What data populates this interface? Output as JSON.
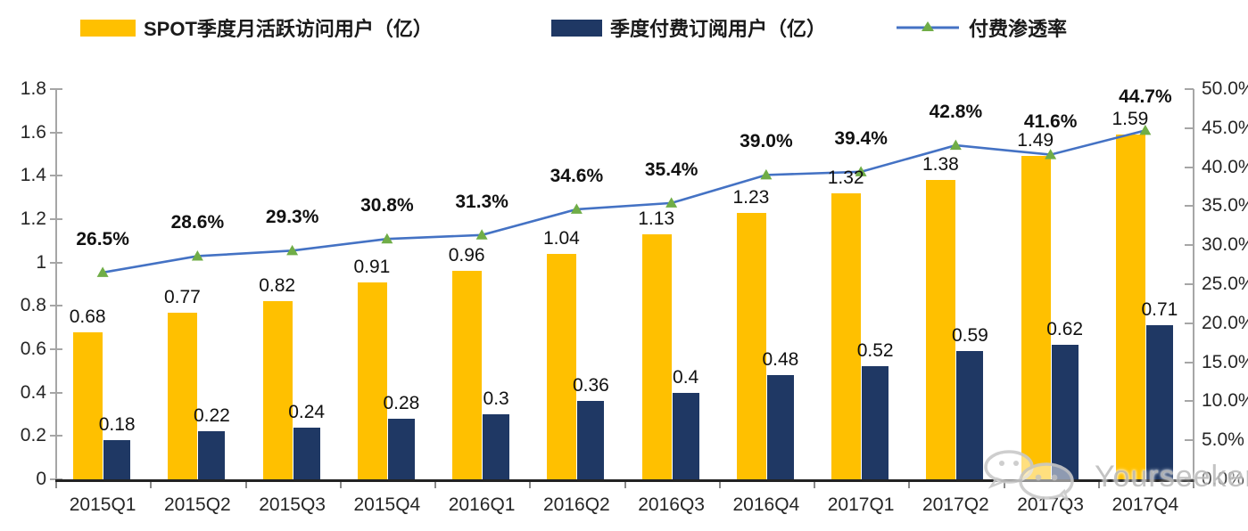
{
  "legend": {
    "mau": "SPOT季度月活跃访问用户（亿）",
    "subscribers": "季度付费订阅用户（亿）",
    "penetration": "付费渗透率"
  },
  "watermark": {
    "text": "Yourseeker",
    "icon": "wechat-icon"
  },
  "colors": {
    "mau_bar": "#FFC000",
    "subscriber_bar": "#1F3864",
    "penetration_line": "#4472C4",
    "penetration_marker": "#70AD47",
    "axis": "#A6A6A6",
    "baseline": "#222222",
    "watermark": "#BDBDBD"
  },
  "chart_data": {
    "type": "bar",
    "title": "",
    "categories": [
      "2015Q1",
      "2015Q2",
      "2015Q3",
      "2015Q4",
      "2016Q1",
      "2016Q2",
      "2016Q3",
      "2016Q4",
      "2017Q1",
      "2017Q2",
      "2017Q3",
      "2017Q4"
    ],
    "series": [
      {
        "name": "SPOT季度月活跃访问用户（亿）",
        "kind": "bar",
        "axis": "left",
        "color": "#FFC000",
        "values": [
          0.68,
          0.77,
          0.82,
          0.91,
          0.96,
          1.04,
          1.13,
          1.23,
          1.32,
          1.38,
          1.49,
          1.59
        ],
        "labels": [
          "0.68",
          "0.77",
          "0.82",
          "0.91",
          "0.96",
          "1.04",
          "1.13",
          "1.23",
          "1.32",
          "1.38",
          "1.49",
          "1.59"
        ]
      },
      {
        "name": "季度付费订阅用户（亿）",
        "kind": "bar",
        "axis": "left",
        "color": "#1F3864",
        "values": [
          0.18,
          0.22,
          0.24,
          0.28,
          0.3,
          0.36,
          0.4,
          0.48,
          0.52,
          0.59,
          0.62,
          0.71
        ],
        "labels": [
          "0.18",
          "0.22",
          "0.24",
          "0.28",
          "0.3",
          "0.36",
          "0.4",
          "0.48",
          "0.52",
          "0.59",
          "0.62",
          "0.71"
        ]
      },
      {
        "name": "付费渗透率",
        "kind": "line",
        "axis": "right",
        "color": "#4472C4",
        "marker": "triangle",
        "marker_color": "#70AD47",
        "values": [
          26.5,
          28.6,
          29.3,
          30.8,
          31.3,
          34.6,
          35.4,
          39.0,
          39.4,
          42.8,
          41.6,
          44.7
        ],
        "labels": [
          "26.5%",
          "28.6%",
          "29.3%",
          "30.8%",
          "31.3%",
          "34.6%",
          "35.4%",
          "39.0%",
          "39.4%",
          "42.8%",
          "41.6%",
          "44.7%"
        ]
      }
    ],
    "left_axis": {
      "min": 0,
      "max": 1.8,
      "tick_labels": [
        "0",
        "0.2",
        "0.4",
        "0.6",
        "0.8",
        "1",
        "1.2",
        "1.4",
        "1.6",
        "1.8"
      ]
    },
    "right_axis": {
      "min": 0,
      "max": 50,
      "tick_labels": [
        "0.0%",
        "5.0%",
        "10.0%",
        "15.0%",
        "20.0%",
        "25.0%",
        "30.0%",
        "35.0%",
        "40.0%",
        "45.0%",
        "50.0%"
      ]
    },
    "grid": false,
    "legend_position": "top"
  }
}
